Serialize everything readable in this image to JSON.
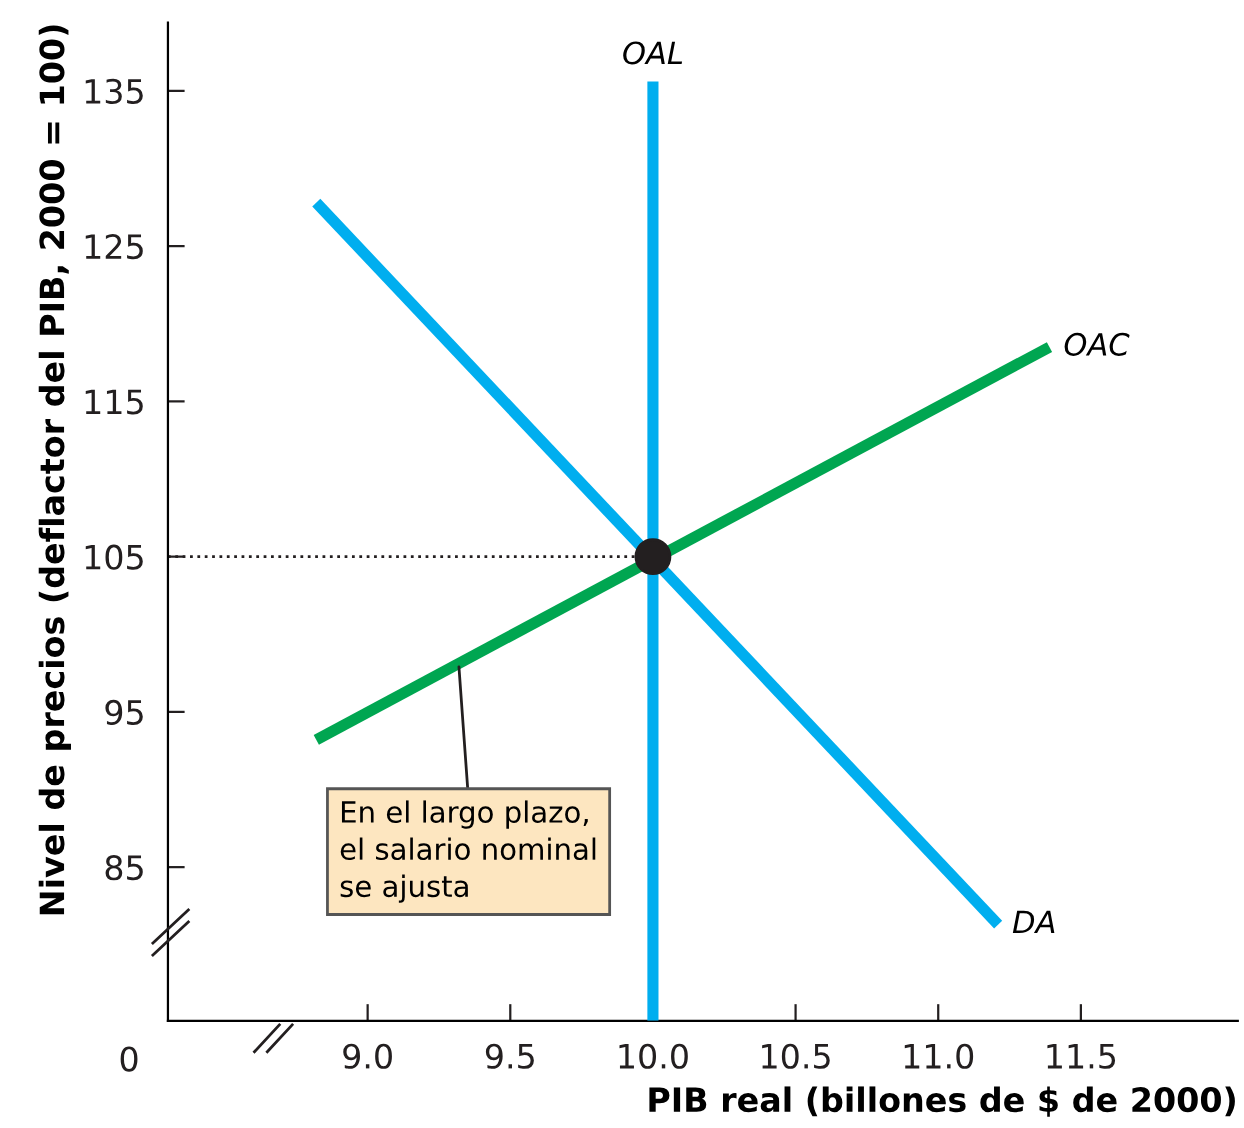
{
  "chart_data": {
    "type": "line",
    "xlabel": "PIB real (billones de $ de 2000)",
    "ylabel": "Nivel de precios (deflactor del PIB, 2000 = 100)",
    "xlim": [
      8.3,
      12.05
    ],
    "ylim": [
      75.1,
      139.4
    ],
    "xticks": [
      {
        "value": 9.0,
        "label": "9.0"
      },
      9.5,
      {
        "value": 10.0,
        "label": "10.0"
      },
      10.5,
      {
        "value": 11.0,
        "label": "11.0"
      },
      11.5
    ],
    "yticks": [
      85,
      95,
      105,
      115,
      125,
      135
    ],
    "grid": false,
    "legend": false,
    "marker": "none",
    "line_style": "solid",
    "series": [
      {
        "name": "OAL",
        "color": "#00aeef",
        "x": [
          10.0,
          10.0
        ],
        "values": [
          75.1,
          135.6
        ]
      },
      {
        "name": "OAC",
        "color": "#00a651",
        "x": [
          8.82,
          11.39
        ],
        "values": [
          93.2,
          118.5
        ]
      },
      {
        "name": "DA",
        "color": "#00aeef",
        "x": [
          8.82,
          11.21
        ],
        "values": [
          127.8,
          81.3
        ]
      },
      {
        "color": "#231f20",
        "type": "line",
        "line_style": "dotted",
        "x": [
          8.3,
          10.0
        ],
        "values": [
          105,
          105
        ]
      },
      {
        "color": "#231f20",
        "type": "scatter",
        "marker": "circle",
        "x": [
          10.0
        ],
        "values": [
          105
        ]
      }
    ],
    "annotations": [
      "0",
      {
        "text": "En el largo plazo,\nel salario nominal\nse ajusta",
        "x": 9.32,
        "y": 97.9
      }
    ]
  }
}
